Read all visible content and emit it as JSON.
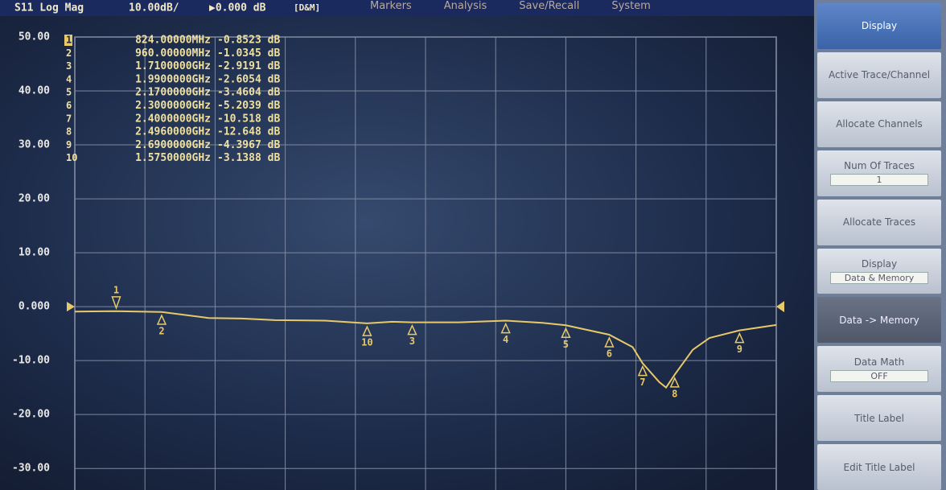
{
  "menu_bar": [
    "Markers",
    "Analysis",
    "Save/Recall",
    "System"
  ],
  "chart_data": {
    "type": "line",
    "title": "S11 Log Mag",
    "scale": "10.00dB/",
    "reference": "▶0.000 dB",
    "mode": "[D&M]",
    "color": "#e8c96a",
    "x": [
      0.7,
      0.824,
      0.96,
      1.1,
      1.2,
      1.3,
      1.45,
      1.575,
      1.65,
      1.71,
      1.85,
      1.99,
      2.1,
      2.17,
      2.3,
      2.37,
      2.4,
      2.45,
      2.47,
      2.496,
      2.55,
      2.6,
      2.69,
      2.8
    ],
    "values": [
      -0.9,
      -0.85,
      -1.0,
      -2.1,
      -2.2,
      -2.5,
      -2.6,
      -3.1,
      -2.8,
      -2.9,
      -2.9,
      -2.6,
      -3.0,
      -3.46,
      -5.2,
      -7.5,
      -10.5,
      -14,
      -15,
      -12.6,
      -8,
      -5.8,
      -4.4,
      -3.4
    ],
    "xlim": [
      0.7,
      2.8
    ],
    "ylim": [
      -34,
      50
    ],
    "yticks": [
      {
        "value": 50,
        "label": "50.00"
      },
      {
        "value": 40,
        "label": "40.00"
      },
      {
        "value": 30,
        "label": "30.00"
      },
      {
        "value": 20,
        "label": "20.00"
      },
      {
        "value": 10,
        "label": "10.00"
      },
      {
        "value": 0,
        "label": "0.000"
      },
      {
        "value": -10,
        "label": "-10.00"
      },
      {
        "value": -20,
        "label": "-20.00"
      },
      {
        "value": -30,
        "label": "-30.00"
      }
    ],
    "grid": true,
    "markers": [
      {
        "label": "1",
        "x": 0.824,
        "x_label": "824.00000MHz",
        "value": -0.8523,
        "value_label": "-0.8523 dB"
      },
      {
        "label": "2",
        "x": 0.96,
        "x_label": "960.00000MHz",
        "value": -1.0345,
        "value_label": "-1.0345 dB"
      },
      {
        "label": "3",
        "x": 1.71,
        "x_label": "1.7100000GHz",
        "value": -2.9191,
        "value_label": "-2.9191 dB"
      },
      {
        "label": "4",
        "x": 1.99,
        "x_label": "1.9900000GHz",
        "value": -2.6054,
        "value_label": "-2.6054 dB"
      },
      {
        "label": "5",
        "x": 2.17,
        "x_label": "2.1700000GHz",
        "value": -3.4604,
        "value_label": "-3.4604 dB"
      },
      {
        "label": "6",
        "x": 2.3,
        "x_label": "2.3000000GHz",
        "value": -5.2039,
        "value_label": "-5.2039 dB"
      },
      {
        "label": "7",
        "x": 2.4,
        "x_label": "2.4000000GHz",
        "value": -10.518,
        "value_label": "-10.518 dB"
      },
      {
        "label": "8",
        "x": 2.496,
        "x_label": "2.4960000GHz",
        "value": -12.648,
        "value_label": "-12.648 dB"
      },
      {
        "label": "9",
        "x": 2.69,
        "x_label": "2.6900000GHz",
        "value": -4.3967,
        "value_label": "-4.3967 dB"
      },
      {
        "label": "10",
        "x": 1.575,
        "x_label": "1.5750000GHz",
        "value": -3.1388,
        "value_label": "-3.1388 dB"
      }
    ]
  },
  "softkeys": [
    {
      "label": "Display"
    },
    {
      "label": "Active Trace/Channel"
    },
    {
      "label": "Allocate Channels"
    },
    {
      "label": "Num Of Traces",
      "value": "1"
    },
    {
      "label": "Allocate Traces"
    },
    {
      "label": "Display",
      "value": "Data & Memory"
    },
    {
      "label": "Data -> Memory"
    },
    {
      "label": "Data Math",
      "value": "OFF"
    },
    {
      "label": "Title Label"
    },
    {
      "label": "Edit Title Label"
    }
  ]
}
